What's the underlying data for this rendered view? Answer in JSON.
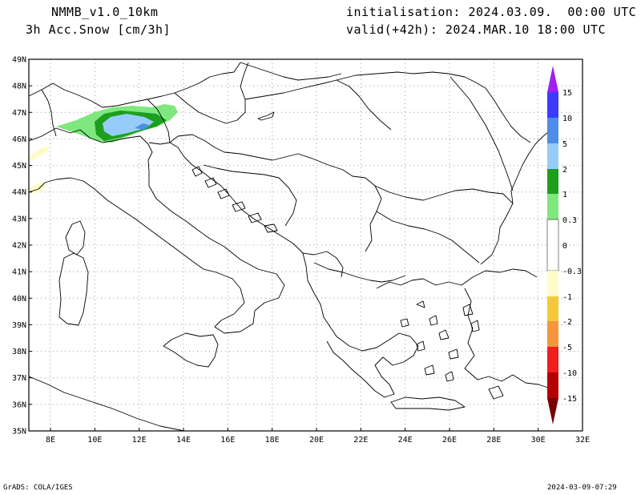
{
  "header": {
    "model": "NMMB_v1.0_10km",
    "field": "3h Acc.Snow [cm/3h]",
    "init": "initialisation: 2024.03.09.  00:00 UTC",
    "valid": "valid(+42h): 2024.MAR.10 18:00 UTC"
  },
  "axes": {
    "lat_labels": [
      "49N",
      "48N",
      "47N",
      "46N",
      "45N",
      "44N",
      "43N",
      "42N",
      "41N",
      "40N",
      "39N",
      "38N",
      "37N",
      "36N",
      "35N"
    ],
    "lon_labels": [
      "8E",
      "10E",
      "12E",
      "14E",
      "16E",
      "18E",
      "20E",
      "22E",
      "24E",
      "26E",
      "28E",
      "30E",
      "32E"
    ]
  },
  "colorbar": {
    "labels": [
      "15",
      "10",
      "5",
      "2",
      "1",
      "0.3",
      "0",
      "-0.3",
      "-1",
      "-2",
      "-5",
      "-10",
      "-15"
    ],
    "colors": {
      "top_triangle": "#a020f0",
      "b10_15": "#3c3cff",
      "b5_10": "#4f8de8",
      "b2_5": "#96cdf8",
      "b1_2": "#1e9e1e",
      "b03_1": "#7ee87e",
      "zero": "#ffffff",
      "n03_1": "#fffbc8",
      "n1_2": "#f5c83c",
      "n2_5": "#f5963c",
      "n5_10": "#f01e1e",
      "n10_15": "#b40000",
      "bottom_triangle": "#780000"
    }
  },
  "footer": {
    "left": "GrADS: COLA/IGES",
    "right": "2024-03-09-07:29"
  }
}
